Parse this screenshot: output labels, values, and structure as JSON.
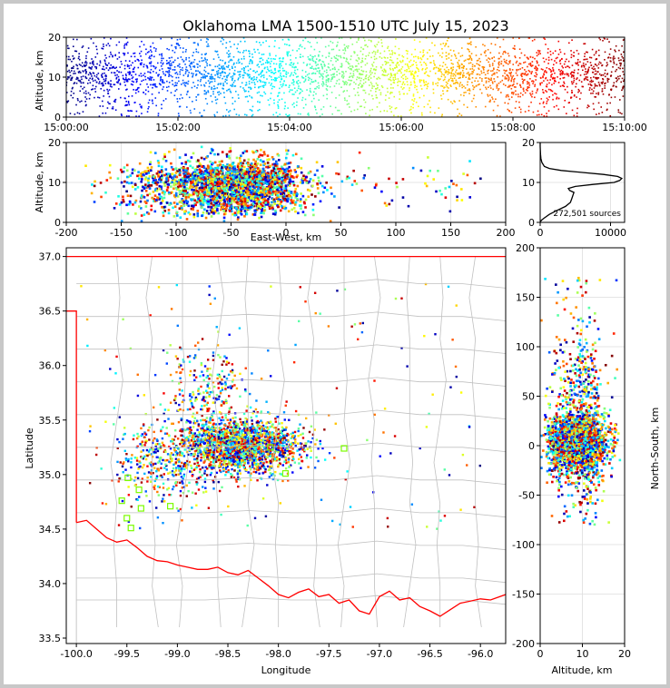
{
  "chart_data": [
    {
      "id": "time-height",
      "type": "scatter",
      "title": "Oklahoma LMA 1500-1510 UTC July 15, 2023",
      "xlabel": "",
      "ylabel": "Altitude, km",
      "xlim": [
        0,
        600
      ],
      "ylim": [
        0,
        20
      ],
      "xticks": [
        0,
        120,
        240,
        360,
        480,
        600
      ],
      "xtick_labels": [
        "15:00:00",
        "15:02:00",
        "15:04:00",
        "15:06:00",
        "15:08:00",
        "15:10:00"
      ],
      "yticks": [
        0,
        10,
        20
      ],
      "color_encoding": "time (jet colormap, blue = 15:00 → dark red = 15:10)"
    },
    {
      "id": "ew-altitude",
      "type": "scatter",
      "xlabel": "East-West, km",
      "ylabel": "Altitude, km",
      "xlim": [
        -200,
        200
      ],
      "ylim": [
        0,
        20
      ],
      "xticks": [
        -200,
        -150,
        -100,
        -50,
        0,
        50,
        100,
        150,
        200
      ],
      "yticks": [
        0,
        10,
        20
      ]
    },
    {
      "id": "altitude-histogram",
      "type": "line",
      "annotation": "272,501 sources",
      "xlim": [
        0,
        12000
      ],
      "ylim": [
        0,
        20
      ],
      "xticks": [
        0,
        10000
      ],
      "yticks": [
        0,
        10,
        20
      ],
      "profile": {
        "altitude_km": [
          0,
          0.5,
          1,
          2,
          3,
          4,
          5,
          6,
          7,
          7.5,
          8,
          8.5,
          9,
          9.5,
          10,
          10.5,
          11,
          11.5,
          12,
          12.5,
          13,
          13.5,
          14,
          15,
          16,
          17,
          18,
          19,
          20
        ],
        "count": [
          0,
          150,
          500,
          1300,
          2400,
          3600,
          4300,
          4500,
          4700,
          4800,
          4200,
          4000,
          5000,
          7500,
          10500,
          11300,
          11600,
          11000,
          9000,
          6000,
          3000,
          1300,
          600,
          250,
          100,
          50,
          20,
          0,
          0
        ]
      }
    },
    {
      "id": "plan-view",
      "type": "scatter",
      "xlabel": "Longitude",
      "ylabel": "Latitude",
      "xlim": [
        -100.1,
        -95.75
      ],
      "ylim": [
        33.45,
        37.08
      ],
      "xticks": [
        -100.0,
        -99.5,
        -99.0,
        -98.5,
        -98.0,
        -97.5,
        -97.0,
        -96.5,
        -96.0
      ],
      "xtick_labels": [
        "-100.0",
        "-99.5",
        "-99.0",
        "-98.5",
        "-98.0",
        "-97.5",
        "-97.0",
        "-96.5",
        "-96.0"
      ],
      "yticks": [
        33.5,
        34.0,
        34.5,
        35.0,
        35.5,
        36.0,
        36.5,
        37.0
      ],
      "ytick_labels": [
        "33.5",
        "34.0",
        "34.5",
        "35.0",
        "35.5",
        "36.0",
        "36.5",
        "37.0"
      ],
      "stations": [
        {
          "lon": -99.49,
          "lat": 34.97
        },
        {
          "lon": -99.38,
          "lat": 34.86
        },
        {
          "lon": -99.55,
          "lat": 34.76
        },
        {
          "lon": -99.36,
          "lat": 34.69
        },
        {
          "lon": -99.07,
          "lat": 34.71
        },
        {
          "lon": -99.5,
          "lat": 34.6
        },
        {
          "lon": -99.46,
          "lat": 34.51
        },
        {
          "lon": -98.08,
          "lat": 35.25
        },
        {
          "lon": -97.93,
          "lat": 35.01
        },
        {
          "lon": -97.35,
          "lat": 35.24
        }
      ],
      "border_color": "#ff0000",
      "county_color": "#c0c0c0"
    },
    {
      "id": "altitude-ns",
      "type": "scatter",
      "xlabel": "Altitude, km",
      "ylabel": "North-South, km",
      "xlim": [
        0,
        20
      ],
      "ylim": [
        -200,
        200
      ],
      "xticks": [
        0,
        10,
        20
      ],
      "yticks": [
        -200,
        -150,
        -100,
        -50,
        0,
        50,
        100,
        150,
        200
      ]
    }
  ]
}
